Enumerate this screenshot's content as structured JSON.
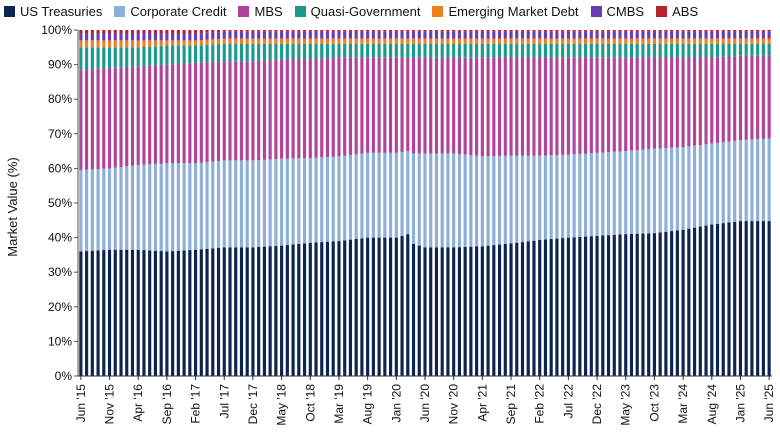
{
  "chart_data": {
    "type": "bar",
    "stacked": true,
    "ylabel": "Market Value (%)",
    "ylim": [
      0,
      100
    ],
    "yticks": [
      "0%",
      "10%",
      "20%",
      "30%",
      "40%",
      "50%",
      "60%",
      "70%",
      "80%",
      "90%",
      "100%"
    ],
    "xticks": [
      "Jun '15",
      "Nov '15",
      "Apr '16",
      "Sep '16",
      "Feb '17",
      "Jul '17",
      "Dec '17",
      "May '18",
      "Oct '18",
      "Mar '19",
      "Aug '19",
      "Jan '20",
      "Jun '20",
      "Nov '20",
      "Apr '21",
      "Sep '21",
      "Feb '22",
      "Jul '22",
      "Dec '22",
      "May '23",
      "Oct '23",
      "Mar '24",
      "Aug '24",
      "Jan '25",
      "Jun '25"
    ],
    "legend_position": "top",
    "keypoints": {
      "dates": [
        "Jun '15",
        "Nov '15",
        "Apr '16",
        "Sep '16",
        "Feb '17",
        "Jul '17",
        "Dec '17",
        "May '18",
        "Oct '18",
        "Mar '19",
        "Aug '19",
        "Jan '20",
        "Mar '20",
        "Apr '20",
        "Jun '20",
        "Nov '20",
        "Apr '21",
        "Sep '21",
        "Feb '22",
        "Jul '22",
        "Dec '22",
        "May '23",
        "Oct '23",
        "Mar '24",
        "Aug '24",
        "Jan '25",
        "Jun '25"
      ],
      "series": [
        {
          "name": "US Treasuries",
          "color": "#0d2350",
          "values": [
            36,
            36.5,
            36.5,
            36,
            36.5,
            37,
            37,
            37.5,
            38.5,
            39,
            40,
            40,
            41,
            38,
            37,
            37,
            37.5,
            38.5,
            39.5,
            40,
            40.5,
            41,
            41.5,
            42.5,
            44,
            45,
            45
          ]
        },
        {
          "name": "Corporate Credit",
          "color": "#8dafd9",
          "values": [
            23.5,
            23.5,
            24.5,
            25.5,
            25,
            25,
            25,
            25,
            24.5,
            24.5,
            24.5,
            24.5,
            24,
            26,
            27,
            27,
            26,
            25.5,
            24.5,
            24,
            24,
            24,
            24.5,
            24,
            23.5,
            23.5,
            24
          ]
        },
        {
          "name": "MBS",
          "color": "#b0439b",
          "values": [
            29,
            29,
            28.5,
            28.5,
            29,
            28.5,
            28.5,
            28.5,
            28.5,
            28.5,
            27.5,
            27.5,
            27,
            27.5,
            27.5,
            27.5,
            28.5,
            28.5,
            28.5,
            28,
            27.5,
            27,
            26.5,
            26,
            25,
            24.5,
            24
          ]
        },
        {
          "name": "Quasi-Government",
          "color": "#1b9a8c",
          "values": [
            6.5,
            6,
            5.5,
            5.5,
            5,
            5,
            5,
            4.5,
            4.5,
            4,
            4,
            4,
            4,
            4,
            4,
            4,
            4,
            4,
            4,
            4,
            4,
            4,
            4,
            4,
            4,
            3.5,
            3.5
          ]
        },
        {
          "name": "Emerging Market Debt",
          "color": "#f07f22",
          "values": [
            2,
            2,
            2,
            1.5,
            1.5,
            1.5,
            1.5,
            1.5,
            1.5,
            1.5,
            1.5,
            1.5,
            1.5,
            1.5,
            1.5,
            1.5,
            1.5,
            1.5,
            1.5,
            1.5,
            1.5,
            1.5,
            1.5,
            1.5,
            1.5,
            1.5,
            1.5
          ]
        },
        {
          "name": "CMBS",
          "color": "#6a3eb0",
          "values": [
            2,
            2,
            2,
            2,
            2,
            2,
            2,
            2,
            2,
            2,
            2,
            2,
            2,
            2,
            2,
            2,
            2,
            2,
            2,
            2,
            2,
            2,
            2,
            2,
            2,
            2,
            2
          ]
        },
        {
          "name": "ABS",
          "color": "#b5232e",
          "values": [
            1,
            1,
            1,
            1,
            1,
            0.5,
            0.5,
            0.5,
            0.5,
            0.5,
            0.5,
            0.5,
            0.5,
            0.5,
            0.5,
            0.5,
            0.5,
            0.5,
            0.5,
            0.5,
            0.5,
            0.5,
            0.5,
            0.5,
            0.5,
            0.5,
            0.5
          ]
        }
      ]
    }
  }
}
